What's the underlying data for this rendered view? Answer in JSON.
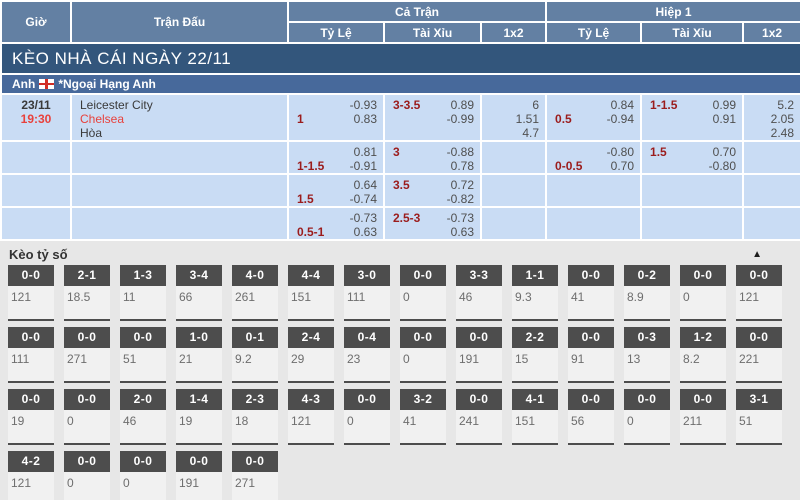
{
  "header": {
    "time": "Giờ",
    "match": "Trận Đấu",
    "full_match": "Cả Trận",
    "first_half": "Hiệp 1",
    "handicap": "Tỷ Lệ",
    "over_under": "Tài Xỉu",
    "one_x_two": "1x2"
  },
  "section_banner": {
    "title": "KÈO NHÀ CÁI NGÀY 22/11"
  },
  "league_row": {
    "country": "Anh",
    "flag_icon": "england-flag",
    "league": "*Ngoại Hạng Anh"
  },
  "odds_rows": [
    {
      "date": "23/11",
      "time": "19:30",
      "teams": [
        "Leicester City",
        "Chelsea",
        "Hòa"
      ],
      "cells": {
        "ft_handicap": {
          "line": "1",
          "values": [
            "-0.93",
            "0.83"
          ]
        },
        "ft_over_under": {
          "line": "3-3.5",
          "values": [
            "0.89",
            "-0.99"
          ]
        },
        "ft_1x2": {
          "values": [
            "6",
            "1.51",
            "4.7"
          ]
        },
        "h1_handicap": {
          "line": "0.5",
          "values": [
            "0.84",
            "-0.94"
          ]
        },
        "h1_over_under": {
          "line": "1-1.5",
          "values": [
            "0.99",
            "0.91"
          ]
        },
        "h1_1x2": {
          "values": [
            "5.2",
            "2.05",
            "2.48"
          ]
        }
      }
    },
    {
      "date": null,
      "time": null,
      "teams": [],
      "cells": {
        "ft_handicap": {
          "line": "1-1.5",
          "values": [
            "0.81",
            "-0.91"
          ]
        },
        "ft_over_under": {
          "line": "3",
          "values": [
            "-0.88",
            "0.78"
          ]
        },
        "ft_1x2": null,
        "h1_handicap": {
          "line": "0-0.5",
          "values": [
            "-0.80",
            "0.70"
          ]
        },
        "h1_over_under": {
          "line": "1.5",
          "values": [
            "0.70",
            "-0.80"
          ]
        },
        "h1_1x2": null
      }
    },
    {
      "date": null,
      "time": null,
      "teams": [],
      "cells": {
        "ft_handicap": {
          "line": "1.5",
          "values": [
            "0.64",
            "-0.74"
          ]
        },
        "ft_over_under": {
          "line": "3.5",
          "values": [
            "0.72",
            "-0.82"
          ]
        },
        "ft_1x2": null,
        "h1_handicap": null,
        "h1_over_under": null,
        "h1_1x2": null
      }
    },
    {
      "date": null,
      "time": null,
      "teams": [],
      "cells": {
        "ft_handicap": {
          "line": "0.5-1",
          "values": [
            "-0.73",
            "0.63"
          ]
        },
        "ft_over_under": {
          "line": "2.5-3",
          "values": [
            "-0.73",
            "0.63"
          ]
        },
        "ft_1x2": null,
        "h1_handicap": null,
        "h1_over_under": null,
        "h1_1x2": null
      }
    }
  ],
  "score_section": {
    "title": "Kèo tỷ số",
    "collapse_icon_glyph": "▲",
    "rows": [
      [
        {
          "score": "0-0",
          "odds": "121"
        },
        {
          "score": "2-1",
          "odds": "18.5"
        },
        {
          "score": "1-3",
          "odds": "11"
        },
        {
          "score": "3-4",
          "odds": "66"
        },
        {
          "score": "4-0",
          "odds": "261"
        },
        {
          "score": "4-4",
          "odds": "151"
        },
        {
          "score": "3-0",
          "odds": "111"
        },
        {
          "score": "0-0",
          "odds": "0"
        },
        {
          "score": "3-3",
          "odds": "46"
        },
        {
          "score": "1-1",
          "odds": "9.3"
        },
        {
          "score": "0-0",
          "odds": "41"
        },
        {
          "score": "0-2",
          "odds": "8.9"
        },
        {
          "score": "0-0",
          "odds": "0"
        },
        {
          "score": "0-0",
          "odds": "121"
        }
      ],
      [
        {
          "score": "0-0",
          "odds": "111"
        },
        {
          "score": "0-0",
          "odds": "271"
        },
        {
          "score": "0-0",
          "odds": "51"
        },
        {
          "score": "1-0",
          "odds": "21"
        },
        {
          "score": "0-1",
          "odds": "9.2"
        },
        {
          "score": "2-4",
          "odds": "29"
        },
        {
          "score": "0-4",
          "odds": "23"
        },
        {
          "score": "0-0",
          "odds": "0"
        },
        {
          "score": "0-0",
          "odds": "191"
        },
        {
          "score": "2-2",
          "odds": "15"
        },
        {
          "score": "0-0",
          "odds": "91"
        },
        {
          "score": "0-3",
          "odds": "13"
        },
        {
          "score": "1-2",
          "odds": "8.2"
        },
        {
          "score": "0-0",
          "odds": "221"
        }
      ],
      [
        {
          "score": "0-0",
          "odds": "19"
        },
        {
          "score": "0-0",
          "odds": "0"
        },
        {
          "score": "2-0",
          "odds": "46"
        },
        {
          "score": "1-4",
          "odds": "19"
        },
        {
          "score": "2-3",
          "odds": "18"
        },
        {
          "score": "4-3",
          "odds": "121"
        },
        {
          "score": "0-0",
          "odds": "0"
        },
        {
          "score": "3-2",
          "odds": "41"
        },
        {
          "score": "0-0",
          "odds": "241"
        },
        {
          "score": "4-1",
          "odds": "151"
        },
        {
          "score": "0-0",
          "odds": "56"
        },
        {
          "score": "0-0",
          "odds": "0"
        },
        {
          "score": "0-0",
          "odds": "211"
        },
        {
          "score": "3-1",
          "odds": "51"
        }
      ],
      [
        {
          "score": "4-2",
          "odds": "121"
        },
        {
          "score": "0-0",
          "odds": "0"
        },
        {
          "score": "0-0",
          "odds": "0"
        },
        {
          "score": "0-0",
          "odds": "191"
        },
        {
          "score": "0-0",
          "odds": "271"
        }
      ]
    ]
  },
  "colors": {
    "header_bg": "#6380a3",
    "banner_bg": "#33567c",
    "league_bg": "#47699b",
    "row_bg": "#c9dcf4",
    "line_red": "#9b1c1c",
    "team_red": "#e8413c",
    "tile_label_bg": "#4d4d4d",
    "page_bg": "#e7e7e7"
  }
}
